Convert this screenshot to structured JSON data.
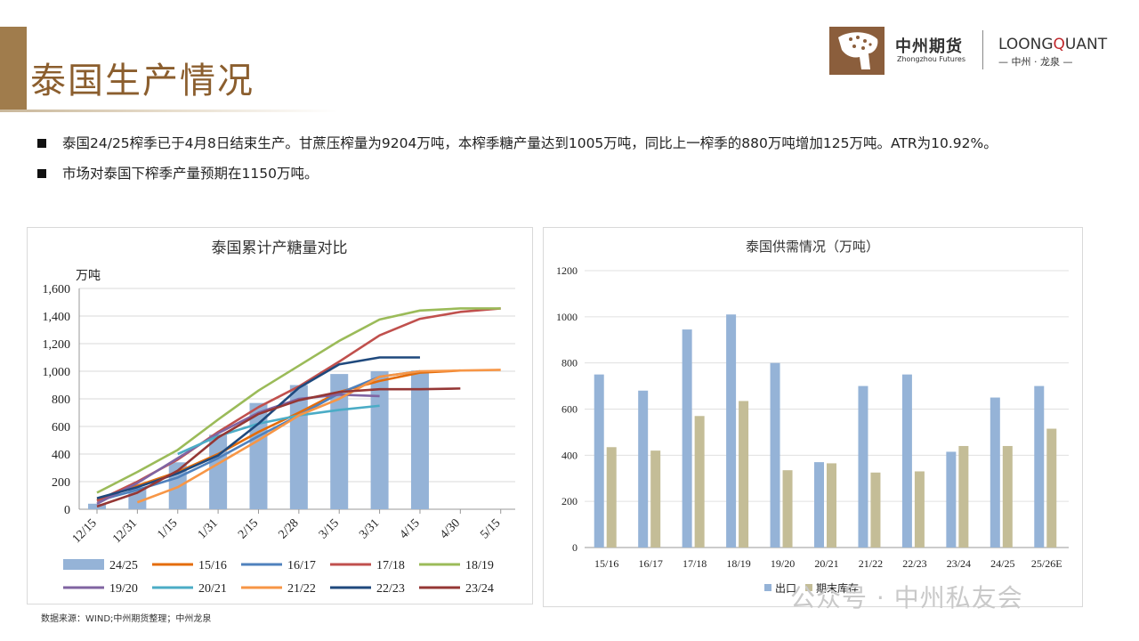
{
  "page": {
    "title": "泰国生产情况"
  },
  "brand": {
    "name_cn": "中州期货",
    "name_en": "Zhongzhou Futures",
    "quant_prefix": "LOONG",
    "quant_q": "Q",
    "quant_suffix": "UANT",
    "quant_sub": "— 中州 · 龙泉 —"
  },
  "bullets": [
    "泰国24/25榨季已于4月8日结束生产。甘蔗压榨量为9204万吨，本榨季糖产量达到1005万吨，同比上一榨季的880万吨增加125万吨。ATR为10.92%。",
    "市场对泰国下榨季产量预期在1150万吨。"
  ],
  "footer": {
    "source": "数据来源：WIND;中州期货整理；中州龙泉"
  },
  "watermark": "公众号 · 中州私友会",
  "colors": {
    "title": "#8b5e2e",
    "accent_bar": "#a07c4c",
    "bar_blue": "#95b3d7",
    "bar_tan": "#c4bd97"
  },
  "chart_data": [
    {
      "type": "bar+line",
      "title": "泰国累计产糖量对比",
      "ylabel": "万吨",
      "ylim": [
        0,
        1600
      ],
      "yticks": [
        "0",
        "200",
        "400",
        "600",
        "800",
        "1,000",
        "1,200",
        "1,400",
        "1,600"
      ],
      "categories": [
        "12/15",
        "12/31",
        "1/15",
        "1/31",
        "2/15",
        "2/28",
        "3/15",
        "3/31",
        "4/15",
        "4/30",
        "5/15"
      ],
      "grid": true,
      "legend_position": "bottom",
      "series": [
        {
          "name": "24/25",
          "type": "bar",
          "color": "#95b3d7",
          "values": [
            40,
            160,
            340,
            540,
            770,
            900,
            980,
            1000,
            1005,
            null,
            null
          ]
        },
        {
          "name": "15/16",
          "type": "line",
          "color": "#e46c0a",
          "values": [
            70,
            170,
            270,
            400,
            560,
            700,
            850,
            930,
            990,
            1005,
            null
          ]
        },
        {
          "name": "16/17",
          "type": "line",
          "color": "#4f81bd",
          "values": [
            60,
            140,
            230,
            370,
            530,
            680,
            840,
            960,
            1000,
            null,
            null
          ]
        },
        {
          "name": "17/18",
          "type": "line",
          "color": "#c0504d",
          "values": [
            60,
            200,
            360,
            560,
            740,
            890,
            1070,
            1260,
            1380,
            1430,
            1455
          ]
        },
        {
          "name": "18/19",
          "type": "line",
          "color": "#9bbb59",
          "values": [
            120,
            270,
            430,
            650,
            860,
            1040,
            1220,
            1375,
            1440,
            1455,
            1455
          ]
        },
        {
          "name": "19/20",
          "type": "line",
          "color": "#8064a2",
          "values": [
            40,
            190,
            370,
            550,
            700,
            800,
            830,
            820,
            null,
            null,
            null
          ]
        },
        {
          "name": "20/21",
          "type": "line",
          "color": "#4bacc6",
          "values": [
            null,
            null,
            400,
            530,
            620,
            680,
            720,
            750,
            null,
            null,
            null
          ]
        },
        {
          "name": "21/22",
          "type": "line",
          "color": "#f79646",
          "values": [
            null,
            50,
            160,
            330,
            500,
            680,
            800,
            960,
            1000,
            1005,
            1010
          ]
        },
        {
          "name": "22/23",
          "type": "line",
          "color": "#1f497d",
          "values": [
            80,
            160,
            260,
            390,
            620,
            880,
            1050,
            1100,
            1100,
            null,
            null
          ]
        },
        {
          "name": "23/24",
          "type": "line",
          "color": "#953735",
          "values": [
            20,
            120,
            280,
            520,
            690,
            790,
            850,
            870,
            870,
            875,
            null
          ]
        }
      ]
    },
    {
      "type": "bar",
      "title": "泰国供需情况（万吨）",
      "ylim": [
        0,
        1200
      ],
      "yticks": [
        "0",
        "200",
        "400",
        "600",
        "800",
        "1000",
        "1200"
      ],
      "categories": [
        "15/16",
        "16/17",
        "17/18",
        "18/19",
        "19/20",
        "20/21",
        "21/22",
        "22/23",
        "23/24",
        "24/25",
        "25/26E"
      ],
      "grid": true,
      "legend_position": "bottom-left",
      "series": [
        {
          "name": "出口",
          "color": "#95b3d7",
          "values": [
            750,
            680,
            945,
            1010,
            800,
            370,
            700,
            750,
            415,
            650,
            700
          ]
        },
        {
          "name": "期末库存",
          "color": "#c4bd97",
          "values": [
            435,
            420,
            570,
            635,
            335,
            365,
            325,
            330,
            440,
            440,
            515
          ]
        }
      ]
    }
  ]
}
